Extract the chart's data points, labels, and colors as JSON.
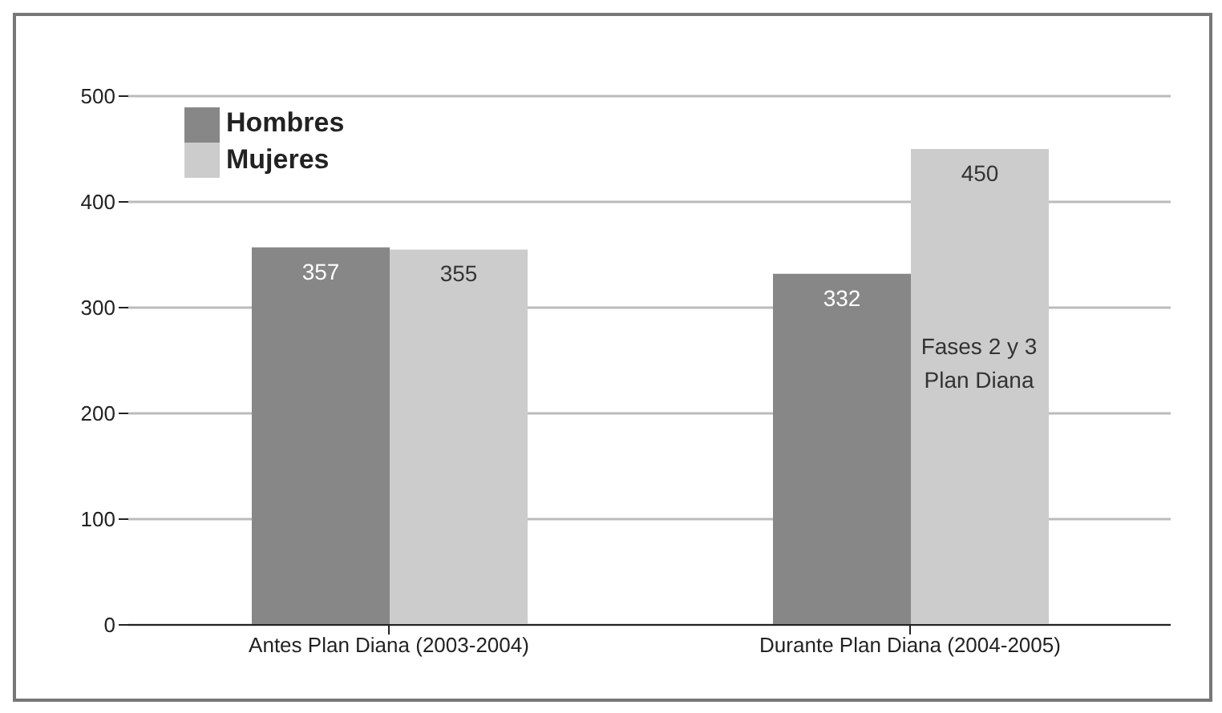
{
  "chart_data": {
    "type": "bar",
    "categories": [
      "Antes Plan Diana (2003-2004)",
      "Durante Plan Diana (2004-2005)"
    ],
    "series": [
      {
        "name": "Hombres",
        "color": "#868786",
        "values": [
          357,
          332
        ]
      },
      {
        "name": "Mujeres",
        "color": "#cbcccb",
        "values": [
          355,
          450
        ]
      }
    ],
    "ylim": [
      0,
      500
    ],
    "yticks": [
      0,
      100,
      200,
      300,
      400,
      500
    ],
    "grid": "y",
    "legend": "top left",
    "data_labels": true,
    "annotations": [
      {
        "text": "Fases 2 y 3 Plan Diana",
        "x": "Durante Plan Diana (2004-2005)",
        "y": 250
      }
    ]
  }
}
